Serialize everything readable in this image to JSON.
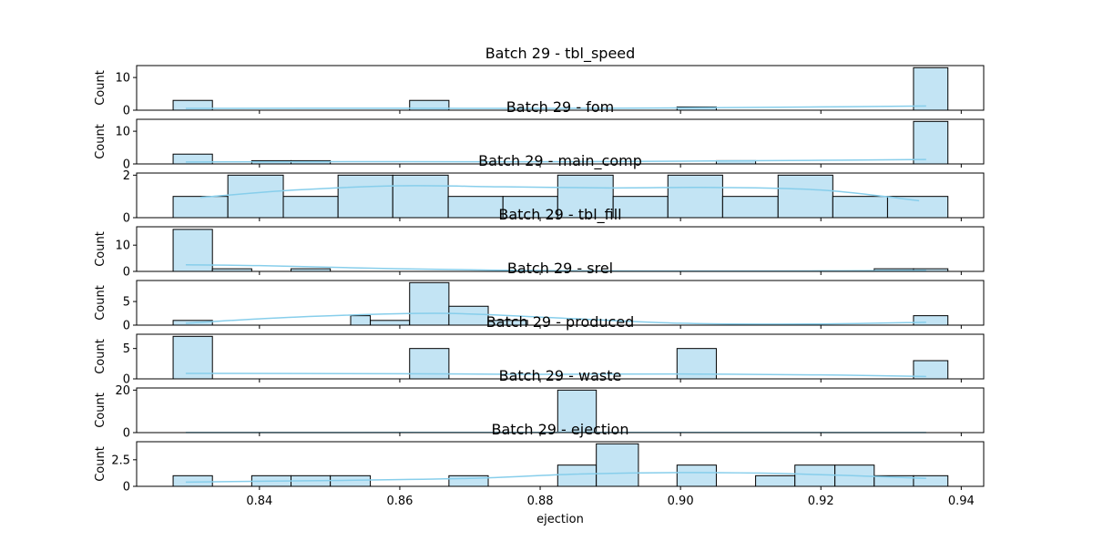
{
  "chart_data": [
    {
      "type": "histogram",
      "title": "Batch 29 - tbl_speed",
      "ylabel": "Count",
      "xlabel": "",
      "ylim": [
        0,
        13.65
      ],
      "yticks": [
        0,
        10
      ],
      "bins": [
        {
          "x0": 0.8277,
          "x1": 0.8333,
          "count": 3
        },
        {
          "x0": 0.8614,
          "x1": 0.867,
          "count": 3
        },
        {
          "x0": 0.8995,
          "x1": 0.9051,
          "count": 1
        },
        {
          "x0": 0.9332,
          "x1": 0.9381,
          "count": 13
        }
      ],
      "kde": [
        [
          0.8295,
          0.55
        ],
        [
          0.86,
          0.6
        ],
        [
          0.88,
          0.55
        ],
        [
          0.9,
          0.7
        ],
        [
          0.92,
          1.0
        ],
        [
          0.935,
          1.3
        ]
      ]
    },
    {
      "type": "histogram",
      "title": "Batch 29 - fom",
      "ylabel": "Count",
      "xlabel": "",
      "ylim": [
        0,
        13.65
      ],
      "yticks": [
        0,
        10
      ],
      "bins": [
        {
          "x0": 0.8277,
          "x1": 0.8333,
          "count": 3
        },
        {
          "x0": 0.8389,
          "x1": 0.8445,
          "count": 1
        },
        {
          "x0": 0.8445,
          "x1": 0.8501,
          "count": 1
        },
        {
          "x0": 0.9051,
          "x1": 0.9107,
          "count": 1
        },
        {
          "x0": 0.9332,
          "x1": 0.9381,
          "count": 13
        }
      ],
      "kde": [
        [
          0.8295,
          0.6
        ],
        [
          0.86,
          0.7
        ],
        [
          0.88,
          0.65
        ],
        [
          0.9,
          0.85
        ],
        [
          0.92,
          1.1
        ],
        [
          0.935,
          1.35
        ]
      ]
    },
    {
      "type": "histogram",
      "title": "Batch 29 - main_comp",
      "ylabel": "",
      "xlabel": "",
      "ylim": [
        0,
        2.1
      ],
      "yticks": [
        0,
        2
      ],
      "bins": [
        {
          "x0": 0.8277,
          "x1": 0.8355,
          "count": 1
        },
        {
          "x0": 0.8355,
          "x1": 0.8434,
          "count": 2
        },
        {
          "x0": 0.8434,
          "x1": 0.8512,
          "count": 1
        },
        {
          "x0": 0.8512,
          "x1": 0.859,
          "count": 2
        },
        {
          "x0": 0.859,
          "x1": 0.8669,
          "count": 2
        },
        {
          "x0": 0.8669,
          "x1": 0.8747,
          "count": 1
        },
        {
          "x0": 0.8747,
          "x1": 0.8825,
          "count": 1
        },
        {
          "x0": 0.8825,
          "x1": 0.8904,
          "count": 2
        },
        {
          "x0": 0.8904,
          "x1": 0.8982,
          "count": 1
        },
        {
          "x0": 0.8982,
          "x1": 0.906,
          "count": 2
        },
        {
          "x0": 0.906,
          "x1": 0.9139,
          "count": 1
        },
        {
          "x0": 0.9139,
          "x1": 0.9217,
          "count": 2
        },
        {
          "x0": 0.9217,
          "x1": 0.9295,
          "count": 1
        },
        {
          "x0": 0.9295,
          "x1": 0.9381,
          "count": 1
        }
      ],
      "kde": [
        [
          0.8316,
          0.95
        ],
        [
          0.845,
          1.3
        ],
        [
          0.86,
          1.5
        ],
        [
          0.875,
          1.45
        ],
        [
          0.89,
          1.4
        ],
        [
          0.905,
          1.42
        ],
        [
          0.92,
          1.3
        ],
        [
          0.934,
          0.8
        ]
      ]
    },
    {
      "type": "histogram",
      "title": "Batch 29 - tbl_fill",
      "ylabel": "Count",
      "xlabel": "",
      "ylim": [
        0,
        17
      ],
      "yticks": [
        0,
        10
      ],
      "bins": [
        {
          "x0": 0.8277,
          "x1": 0.8333,
          "count": 16
        },
        {
          "x0": 0.8333,
          "x1": 0.8389,
          "count": 1
        },
        {
          "x0": 0.8445,
          "x1": 0.8501,
          "count": 1
        },
        {
          "x0": 0.9276,
          "x1": 0.9332,
          "count": 1
        },
        {
          "x0": 0.9332,
          "x1": 0.9381,
          "count": 1
        }
      ],
      "kde": [
        [
          0.8295,
          2.5
        ],
        [
          0.84,
          2.2
        ],
        [
          0.86,
          1.0
        ],
        [
          0.88,
          0.3
        ],
        [
          0.9,
          0.15
        ],
        [
          0.92,
          0.2
        ],
        [
          0.935,
          0.4
        ]
      ]
    },
    {
      "type": "histogram",
      "title": "Batch 29 - srel",
      "ylabel": "Count",
      "xlabel": "",
      "ylim": [
        0,
        9.45
      ],
      "yticks": [
        0,
        5
      ],
      "bins": [
        {
          "x0": 0.8277,
          "x1": 0.8333,
          "count": 1
        },
        {
          "x0": 0.853,
          "x1": 0.8558,
          "count": 2
        },
        {
          "x0": 0.8558,
          "x1": 0.8614,
          "count": 1
        },
        {
          "x0": 0.8614,
          "x1": 0.867,
          "count": 9
        },
        {
          "x0": 0.867,
          "x1": 0.8726,
          "count": 4
        },
        {
          "x0": 0.8726,
          "x1": 0.8782,
          "count": 1
        },
        {
          "x0": 0.9332,
          "x1": 0.9381,
          "count": 2
        }
      ],
      "kde": [
        [
          0.8295,
          0.4
        ],
        [
          0.845,
          1.7
        ],
        [
          0.865,
          2.5
        ],
        [
          0.88,
          1.7
        ],
        [
          0.9,
          0.4
        ],
        [
          0.92,
          0.25
        ],
        [
          0.935,
          0.6
        ]
      ]
    },
    {
      "type": "histogram",
      "title": "Batch 29 - produced",
      "ylabel": "Count",
      "xlabel": "",
      "ylim": [
        0,
        7.35
      ],
      "yticks": [
        0,
        5
      ],
      "bins": [
        {
          "x0": 0.8277,
          "x1": 0.8333,
          "count": 7
        },
        {
          "x0": 0.8614,
          "x1": 0.867,
          "count": 5
        },
        {
          "x0": 0.8995,
          "x1": 0.9051,
          "count": 5
        },
        {
          "x0": 0.9332,
          "x1": 0.9381,
          "count": 3
        }
      ],
      "kde": [
        [
          0.8295,
          0.9
        ],
        [
          0.86,
          0.85
        ],
        [
          0.88,
          0.75
        ],
        [
          0.9,
          0.8
        ],
        [
          0.92,
          0.65
        ],
        [
          0.935,
          0.4
        ]
      ]
    },
    {
      "type": "histogram",
      "title": "Batch 29 - waste",
      "ylabel": "Count",
      "xlabel": "",
      "ylim": [
        0,
        21
      ],
      "yticks": [
        0,
        20
      ],
      "bins": [
        {
          "x0": 0.8825,
          "x1": 0.888,
          "count": 20
        }
      ],
      "kde": [
        [
          0.8295,
          0.05
        ],
        [
          0.88,
          0.1
        ],
        [
          0.935,
          0.05
        ]
      ]
    },
    {
      "type": "histogram",
      "title": "Batch 29 - ejection",
      "ylabel": "Count",
      "xlabel": "ejection",
      "ylim": [
        0,
        4.2
      ],
      "yticks": [
        0,
        2.5
      ],
      "bins": [
        {
          "x0": 0.8277,
          "x1": 0.8333,
          "count": 1
        },
        {
          "x0": 0.8389,
          "x1": 0.8445,
          "count": 1
        },
        {
          "x0": 0.8445,
          "x1": 0.8501,
          "count": 1
        },
        {
          "x0": 0.8501,
          "x1": 0.8558,
          "count": 1
        },
        {
          "x0": 0.867,
          "x1": 0.8726,
          "count": 1
        },
        {
          "x0": 0.8825,
          "x1": 0.888,
          "count": 2
        },
        {
          "x0": 0.888,
          "x1": 0.894,
          "count": 4
        },
        {
          "x0": 0.8995,
          "x1": 0.9051,
          "count": 2
        },
        {
          "x0": 0.9107,
          "x1": 0.9163,
          "count": 1
        },
        {
          "x0": 0.9163,
          "x1": 0.922,
          "count": 2
        },
        {
          "x0": 0.922,
          "x1": 0.9276,
          "count": 2
        },
        {
          "x0": 0.9276,
          "x1": 0.9332,
          "count": 1
        },
        {
          "x0": 0.9332,
          "x1": 0.9381,
          "count": 1
        }
      ],
      "kde": [
        [
          0.8295,
          0.4
        ],
        [
          0.85,
          0.55
        ],
        [
          0.87,
          0.75
        ],
        [
          0.885,
          1.15
        ],
        [
          0.9,
          1.3
        ],
        [
          0.915,
          1.2
        ],
        [
          0.935,
          0.75
        ]
      ]
    }
  ],
  "x_axis": {
    "xlim": [
      0.8225,
      0.9432
    ],
    "ticks": [
      0.84,
      0.86,
      0.88,
      0.9,
      0.92,
      0.94
    ],
    "tick_labels": [
      "0.84",
      "0.86",
      "0.88",
      "0.90",
      "0.92",
      "0.94"
    ],
    "label": "ejection"
  },
  "colors": {
    "bar_fill": "#c3e4f4",
    "bar_edge": "#000000",
    "kde_line": "#87ceeb"
  }
}
